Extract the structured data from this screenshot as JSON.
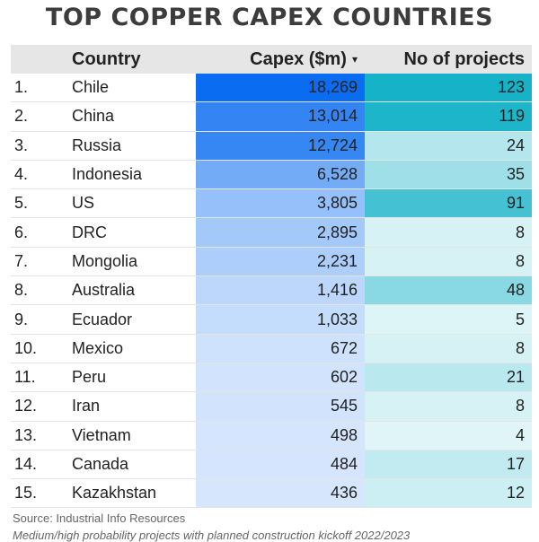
{
  "title": "TOP COPPER CAPEX COUNTRIES",
  "header": {
    "country": "Country",
    "capex": "Capex ($m)",
    "sort_icon": "▾",
    "projects": "No of projects"
  },
  "colors": {
    "capex_scale": [
      "#eef5ff",
      "#0a6cf0"
    ],
    "projects_scale": [
      "#eefafb",
      "#16b3c8"
    ]
  },
  "chart_data": {
    "type": "table",
    "title": "TOP COPPER CAPEX COUNTRIES",
    "columns": [
      "Country",
      "Capex ($m)",
      "No of projects"
    ],
    "rows": [
      {
        "rank": "1.",
        "country": "Chile",
        "capex": 18269,
        "capex_label": "18,269",
        "projects": 123
      },
      {
        "rank": "2.",
        "country": "China",
        "capex": 13014,
        "capex_label": "13,014",
        "projects": 119
      },
      {
        "rank": "3.",
        "country": "Russia",
        "capex": 12724,
        "capex_label": "12,724",
        "projects": 24
      },
      {
        "rank": "4.",
        "country": "Indonesia",
        "capex": 6528,
        "capex_label": "6,528",
        "projects": 35
      },
      {
        "rank": "5.",
        "country": "US",
        "capex": 3805,
        "capex_label": "3,805",
        "projects": 91
      },
      {
        "rank": "6.",
        "country": "DRC",
        "capex": 2895,
        "capex_label": "2,895",
        "projects": 8
      },
      {
        "rank": "7.",
        "country": "Mongolia",
        "capex": 2231,
        "capex_label": "2,231",
        "projects": 8
      },
      {
        "rank": "8.",
        "country": "Australia",
        "capex": 1416,
        "capex_label": "1,416",
        "projects": 48
      },
      {
        "rank": "9.",
        "country": "Ecuador",
        "capex": 1033,
        "capex_label": "1,033",
        "projects": 5
      },
      {
        "rank": "10.",
        "country": "Mexico",
        "capex": 672,
        "capex_label": "672",
        "projects": 8
      },
      {
        "rank": "11.",
        "country": "Peru",
        "capex": 602,
        "capex_label": "602",
        "projects": 21
      },
      {
        "rank": "12.",
        "country": "Iran",
        "capex": 545,
        "capex_label": "545",
        "projects": 8
      },
      {
        "rank": "13.",
        "country": "Vietnam",
        "capex": 498,
        "capex_label": "498",
        "projects": 4
      },
      {
        "rank": "14.",
        "country": "Canada",
        "capex": 484,
        "capex_label": "484",
        "projects": 17
      },
      {
        "rank": "15.",
        "country": "Kazakhstan",
        "capex": 436,
        "capex_label": "436",
        "projects": 12
      }
    ]
  },
  "footer": {
    "source": "Source: Industrial Info Resources",
    "note": "Medium/high probability projects with planned construction kickoff 2022/2023"
  }
}
